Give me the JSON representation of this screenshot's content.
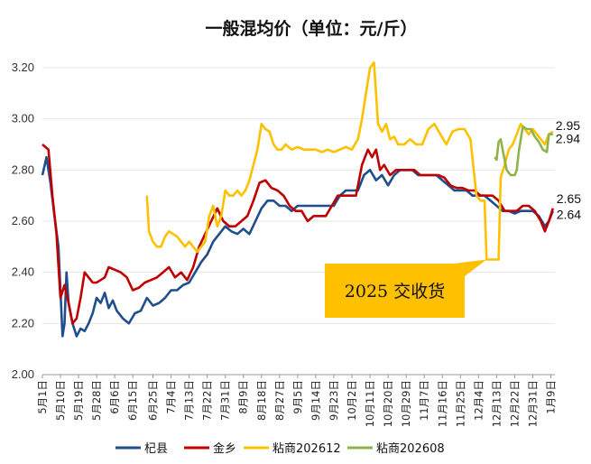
{
  "chart_data": {
    "type": "line",
    "title": "一般混均价（单位：元/斤）",
    "ylim": [
      2.0,
      3.2
    ],
    "yticks": [
      "2.00",
      "2.20",
      "2.40",
      "2.60",
      "2.80",
      "3.00",
      "3.20"
    ],
    "x_tick_labels": [
      "5月1日",
      "5月10日",
      "5月19日",
      "5月28日",
      "6月6日",
      "6月15日",
      "6月25日",
      "7月4日",
      "7月13日",
      "7月22日",
      "7月31日",
      "8月9日",
      "8月18日",
      "8月27日",
      "9月5日",
      "9月14日",
      "9月23日",
      "10月2日",
      "10月11日",
      "10月20日",
      "10月29日",
      "11月7日",
      "11月16日",
      "11月25日",
      "12月4日",
      "12月13日",
      "12月22日",
      "12月31日",
      "1月9日"
    ],
    "x_label_positions": [
      0,
      9,
      18,
      27,
      36,
      45,
      55,
      64,
      73,
      82,
      91,
      100,
      109,
      118,
      127,
      136,
      145,
      154,
      163,
      172,
      181,
      190,
      199,
      208,
      217,
      226,
      235,
      244,
      253
    ],
    "total_points": 256,
    "series": [
      {
        "name": "杞县",
        "color": "#1F4E8C",
        "end_label": "2.64",
        "points": [
          [
            0,
            2.78
          ],
          [
            2,
            2.85
          ],
          [
            4,
            2.75
          ],
          [
            6,
            2.62
          ],
          [
            8,
            2.5
          ],
          [
            10,
            2.15
          ],
          [
            11,
            2.2
          ],
          [
            12,
            2.4
          ],
          [
            13,
            2.28
          ],
          [
            15,
            2.2
          ],
          [
            17,
            2.15
          ],
          [
            19,
            2.18
          ],
          [
            21,
            2.17
          ],
          [
            23,
            2.2
          ],
          [
            25,
            2.24
          ],
          [
            27,
            2.3
          ],
          [
            29,
            2.28
          ],
          [
            31,
            2.32
          ],
          [
            33,
            2.26
          ],
          [
            35,
            2.29
          ],
          [
            37,
            2.25
          ],
          [
            40,
            2.22
          ],
          [
            43,
            2.2
          ],
          [
            46,
            2.24
          ],
          [
            49,
            2.25
          ],
          [
            52,
            2.3
          ],
          [
            55,
            2.27
          ],
          [
            58,
            2.28
          ],
          [
            61,
            2.3
          ],
          [
            64,
            2.33
          ],
          [
            67,
            2.33
          ],
          [
            70,
            2.35
          ],
          [
            73,
            2.36
          ],
          [
            76,
            2.4
          ],
          [
            79,
            2.44
          ],
          [
            82,
            2.47
          ],
          [
            85,
            2.52
          ],
          [
            88,
            2.55
          ],
          [
            91,
            2.58
          ],
          [
            94,
            2.56
          ],
          [
            97,
            2.55
          ],
          [
            100,
            2.57
          ],
          [
            103,
            2.55
          ],
          [
            106,
            2.6
          ],
          [
            109,
            2.65
          ],
          [
            112,
            2.68
          ],
          [
            115,
            2.68
          ],
          [
            118,
            2.66
          ],
          [
            121,
            2.66
          ],
          [
            124,
            2.64
          ],
          [
            127,
            2.66
          ],
          [
            130,
            2.66
          ],
          [
            133,
            2.66
          ],
          [
            136,
            2.66
          ],
          [
            139,
            2.66
          ],
          [
            142,
            2.66
          ],
          [
            145,
            2.66
          ],
          [
            148,
            2.7
          ],
          [
            151,
            2.72
          ],
          [
            154,
            2.72
          ],
          [
            157,
            2.72
          ],
          [
            160,
            2.78
          ],
          [
            163,
            2.8
          ],
          [
            166,
            2.76
          ],
          [
            169,
            2.78
          ],
          [
            172,
            2.74
          ],
          [
            175,
            2.78
          ],
          [
            178,
            2.8
          ],
          [
            181,
            2.8
          ],
          [
            184,
            2.8
          ],
          [
            187,
            2.78
          ],
          [
            190,
            2.78
          ],
          [
            193,
            2.78
          ],
          [
            196,
            2.78
          ],
          [
            199,
            2.76
          ],
          [
            202,
            2.74
          ],
          [
            205,
            2.72
          ],
          [
            208,
            2.72
          ],
          [
            211,
            2.72
          ],
          [
            214,
            2.7
          ],
          [
            217,
            2.7
          ],
          [
            220,
            2.7
          ],
          [
            223,
            2.68
          ],
          [
            226,
            2.66
          ],
          [
            229,
            2.64
          ],
          [
            232,
            2.64
          ],
          [
            235,
            2.63
          ],
          [
            238,
            2.64
          ],
          [
            241,
            2.64
          ],
          [
            244,
            2.64
          ],
          [
            247,
            2.62
          ],
          [
            250,
            2.58
          ],
          [
            252,
            2.6
          ],
          [
            254,
            2.64
          ]
        ]
      },
      {
        "name": "金乡",
        "color": "#C00000",
        "end_label": "2.65",
        "points": [
          [
            0,
            2.9
          ],
          [
            3,
            2.88
          ],
          [
            5,
            2.7
          ],
          [
            7,
            2.55
          ],
          [
            9,
            2.3
          ],
          [
            11,
            2.35
          ],
          [
            13,
            2.28
          ],
          [
            15,
            2.2
          ],
          [
            17,
            2.22
          ],
          [
            19,
            2.3
          ],
          [
            21,
            2.4
          ],
          [
            23,
            2.38
          ],
          [
            25,
            2.36
          ],
          [
            27,
            2.36
          ],
          [
            29,
            2.37
          ],
          [
            31,
            2.38
          ],
          [
            33,
            2.42
          ],
          [
            36,
            2.41
          ],
          [
            39,
            2.4
          ],
          [
            42,
            2.38
          ],
          [
            45,
            2.33
          ],
          [
            48,
            2.34
          ],
          [
            51,
            2.36
          ],
          [
            54,
            2.37
          ],
          [
            57,
            2.38
          ],
          [
            60,
            2.4
          ],
          [
            63,
            2.42
          ],
          [
            66,
            2.38
          ],
          [
            69,
            2.4
          ],
          [
            72,
            2.37
          ],
          [
            75,
            2.42
          ],
          [
            78,
            2.5
          ],
          [
            81,
            2.55
          ],
          [
            84,
            2.6
          ],
          [
            87,
            2.65
          ],
          [
            90,
            2.6
          ],
          [
            93,
            2.58
          ],
          [
            96,
            2.58
          ],
          [
            99,
            2.6
          ],
          [
            102,
            2.62
          ],
          [
            105,
            2.68
          ],
          [
            108,
            2.75
          ],
          [
            111,
            2.76
          ],
          [
            114,
            2.73
          ],
          [
            117,
            2.72
          ],
          [
            120,
            2.7
          ],
          [
            123,
            2.66
          ],
          [
            126,
            2.64
          ],
          [
            129,
            2.64
          ],
          [
            132,
            2.6
          ],
          [
            135,
            2.62
          ],
          [
            138,
            2.62
          ],
          [
            141,
            2.62
          ],
          [
            144,
            2.66
          ],
          [
            147,
            2.7
          ],
          [
            150,
            2.7
          ],
          [
            153,
            2.7
          ],
          [
            156,
            2.7
          ],
          [
            159,
            2.82
          ],
          [
            162,
            2.88
          ],
          [
            164,
            2.85
          ],
          [
            166,
            2.88
          ],
          [
            168,
            2.8
          ],
          [
            170,
            2.82
          ],
          [
            173,
            2.78
          ],
          [
            176,
            2.8
          ],
          [
            179,
            2.8
          ],
          [
            182,
            2.8
          ],
          [
            185,
            2.8
          ],
          [
            188,
            2.78
          ],
          [
            191,
            2.78
          ],
          [
            194,
            2.78
          ],
          [
            197,
            2.78
          ],
          [
            200,
            2.77
          ],
          [
            203,
            2.74
          ],
          [
            206,
            2.73
          ],
          [
            209,
            2.73
          ],
          [
            212,
            2.72
          ],
          [
            215,
            2.72
          ],
          [
            218,
            2.7
          ],
          [
            221,
            2.7
          ],
          [
            224,
            2.7
          ],
          [
            227,
            2.68
          ],
          [
            230,
            2.64
          ],
          [
            233,
            2.64
          ],
          [
            236,
            2.64
          ],
          [
            239,
            2.66
          ],
          [
            242,
            2.66
          ],
          [
            245,
            2.64
          ],
          [
            248,
            2.6
          ],
          [
            250,
            2.56
          ],
          [
            252,
            2.6
          ],
          [
            254,
            2.65
          ]
        ]
      },
      {
        "name": "粘商202612",
        "color": "#FFC000",
        "end_label": "2.95",
        "points": [
          [
            52,
            2.7
          ],
          [
            53,
            2.56
          ],
          [
            55,
            2.52
          ],
          [
            57,
            2.5
          ],
          [
            59,
            2.5
          ],
          [
            61,
            2.54
          ],
          [
            63,
            2.56
          ],
          [
            65,
            2.55
          ],
          [
            67,
            2.54
          ],
          [
            69,
            2.52
          ],
          [
            71,
            2.5
          ],
          [
            73,
            2.52
          ],
          [
            75,
            2.5
          ],
          [
            77,
            2.48
          ],
          [
            79,
            2.5
          ],
          [
            81,
            2.52
          ],
          [
            83,
            2.62
          ],
          [
            85,
            2.66
          ],
          [
            87,
            2.58
          ],
          [
            89,
            2.62
          ],
          [
            91,
            2.72
          ],
          [
            93,
            2.7
          ],
          [
            95,
            2.7
          ],
          [
            97,
            2.72
          ],
          [
            99,
            2.7
          ],
          [
            101,
            2.72
          ],
          [
            103,
            2.76
          ],
          [
            105,
            2.82
          ],
          [
            107,
            2.88
          ],
          [
            109,
            2.98
          ],
          [
            111,
            2.96
          ],
          [
            113,
            2.95
          ],
          [
            115,
            2.9
          ],
          [
            117,
            2.88
          ],
          [
            119,
            2.88
          ],
          [
            121,
            2.9
          ],
          [
            124,
            2.88
          ],
          [
            127,
            2.89
          ],
          [
            130,
            2.88
          ],
          [
            133,
            2.88
          ],
          [
            136,
            2.88
          ],
          [
            139,
            2.87
          ],
          [
            142,
            2.88
          ],
          [
            145,
            2.87
          ],
          [
            148,
            2.88
          ],
          [
            151,
            2.89
          ],
          [
            154,
            2.88
          ],
          [
            157,
            2.92
          ],
          [
            159,
            3.0
          ],
          [
            161,
            3.1
          ],
          [
            163,
            3.2
          ],
          [
            165,
            3.22
          ],
          [
            167,
            2.98
          ],
          [
            169,
            2.95
          ],
          [
            171,
            2.98
          ],
          [
            173,
            2.92
          ],
          [
            175,
            2.93
          ],
          [
            177,
            2.9
          ],
          [
            180,
            2.9
          ],
          [
            183,
            2.92
          ],
          [
            186,
            2.9
          ],
          [
            189,
            2.9
          ],
          [
            192,
            2.96
          ],
          [
            195,
            2.98
          ],
          [
            198,
            2.94
          ],
          [
            201,
            2.9
          ],
          [
            204,
            2.95
          ],
          [
            207,
            2.96
          ],
          [
            210,
            2.96
          ],
          [
            213,
            2.92
          ],
          [
            216,
            2.7
          ],
          [
            218,
            2.68
          ],
          [
            220,
            2.68
          ],
          [
            221,
            2.45
          ],
          [
            223,
            2.45
          ],
          [
            225,
            2.45
          ],
          [
            227,
            2.45
          ],
          [
            228,
            2.77
          ],
          [
            230,
            2.82
          ],
          [
            232,
            2.88
          ],
          [
            234,
            2.9
          ],
          [
            236,
            2.94
          ],
          [
            238,
            2.98
          ],
          [
            240,
            2.96
          ],
          [
            242,
            2.94
          ],
          [
            244,
            2.96
          ],
          [
            246,
            2.94
          ],
          [
            248,
            2.92
          ],
          [
            250,
            2.9
          ],
          [
            252,
            2.94
          ],
          [
            254,
            2.95
          ]
        ]
      },
      {
        "name": "粘商202608",
        "color": "#8EB34A",
        "end_label": "2.94",
        "points": [
          [
            225,
            2.85
          ],
          [
            226,
            2.84
          ],
          [
            227,
            2.91
          ],
          [
            228,
            2.92
          ],
          [
            229,
            2.88
          ],
          [
            231,
            2.8
          ],
          [
            233,
            2.78
          ],
          [
            235,
            2.78
          ],
          [
            236,
            2.8
          ],
          [
            237,
            2.87
          ],
          [
            239,
            2.97
          ],
          [
            241,
            2.96
          ],
          [
            243,
            2.96
          ],
          [
            245,
            2.93
          ],
          [
            247,
            2.91
          ],
          [
            249,
            2.88
          ],
          [
            251,
            2.87
          ],
          [
            252,
            2.94
          ],
          [
            254,
            2.94
          ]
        ]
      }
    ],
    "annotation": {
      "text": "2025 交收货",
      "points_to_x": 221,
      "points_to_y": 2.45
    }
  }
}
